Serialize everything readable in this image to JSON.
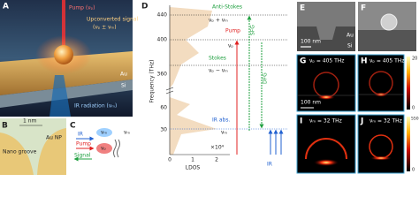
{
  "panels": {
    "A": {
      "label": "A",
      "pump": "Pump (νₚ)",
      "signal": "Upconverted signal",
      "signal_freq": "(νₚ ± νₘ)",
      "au": "Au",
      "si": "Si",
      "ir": "IR radiation (νₘ)"
    },
    "B": {
      "label": "B",
      "scale": "1 nm",
      "np": "Au NP",
      "groove": "Nano groove"
    },
    "C": {
      "label": "C",
      "ir": "IR",
      "pump": "Pump",
      "signal": "Signal",
      "nu_m_top": "νₘ",
      "nu_p": "νₚ",
      "nu_m_right": "νₘ"
    },
    "D": {
      "label": "D",
      "y_axis_label": "Frequency (THz)",
      "y_ticks": [
        "440",
        "400",
        "360",
        "60",
        "30"
      ],
      "x_axis_label": "LDOS",
      "x_ticks": [
        "0",
        "1",
        "2"
      ],
      "x_scale": "×10⁴",
      "anti_stokes": "Anti-Stokes",
      "anti_stokes_freq": "νₚ + νₘ",
      "pump": "Pump",
      "pump_freq": "νₚ",
      "sfg": "SFG",
      "stokes": "Stokes",
      "stokes_freq": "νₚ − νₘ",
      "dfg": "DFG",
      "ir_abs": "IR abs.",
      "ir_freq": "νₘ",
      "ir": "IR"
    },
    "E": {
      "label": "E",
      "scale": "100 nm",
      "au": "Au",
      "si": "Si"
    },
    "F": {
      "label": "F"
    },
    "G": {
      "label": "G",
      "freq": "νₚ = 405 THz",
      "scale": "100 nm"
    },
    "H": {
      "label": "H",
      "freq": "νₚ = 405 THz",
      "colorbar_ticks": [
        "20",
        "0"
      ]
    },
    "I": {
      "label": "I",
      "freq": "νₘ = 32 THz"
    },
    "J": {
      "label": "J",
      "freq": "νₘ = 32 THz",
      "colorbar_ticks": [
        "550",
        "0"
      ]
    }
  }
}
